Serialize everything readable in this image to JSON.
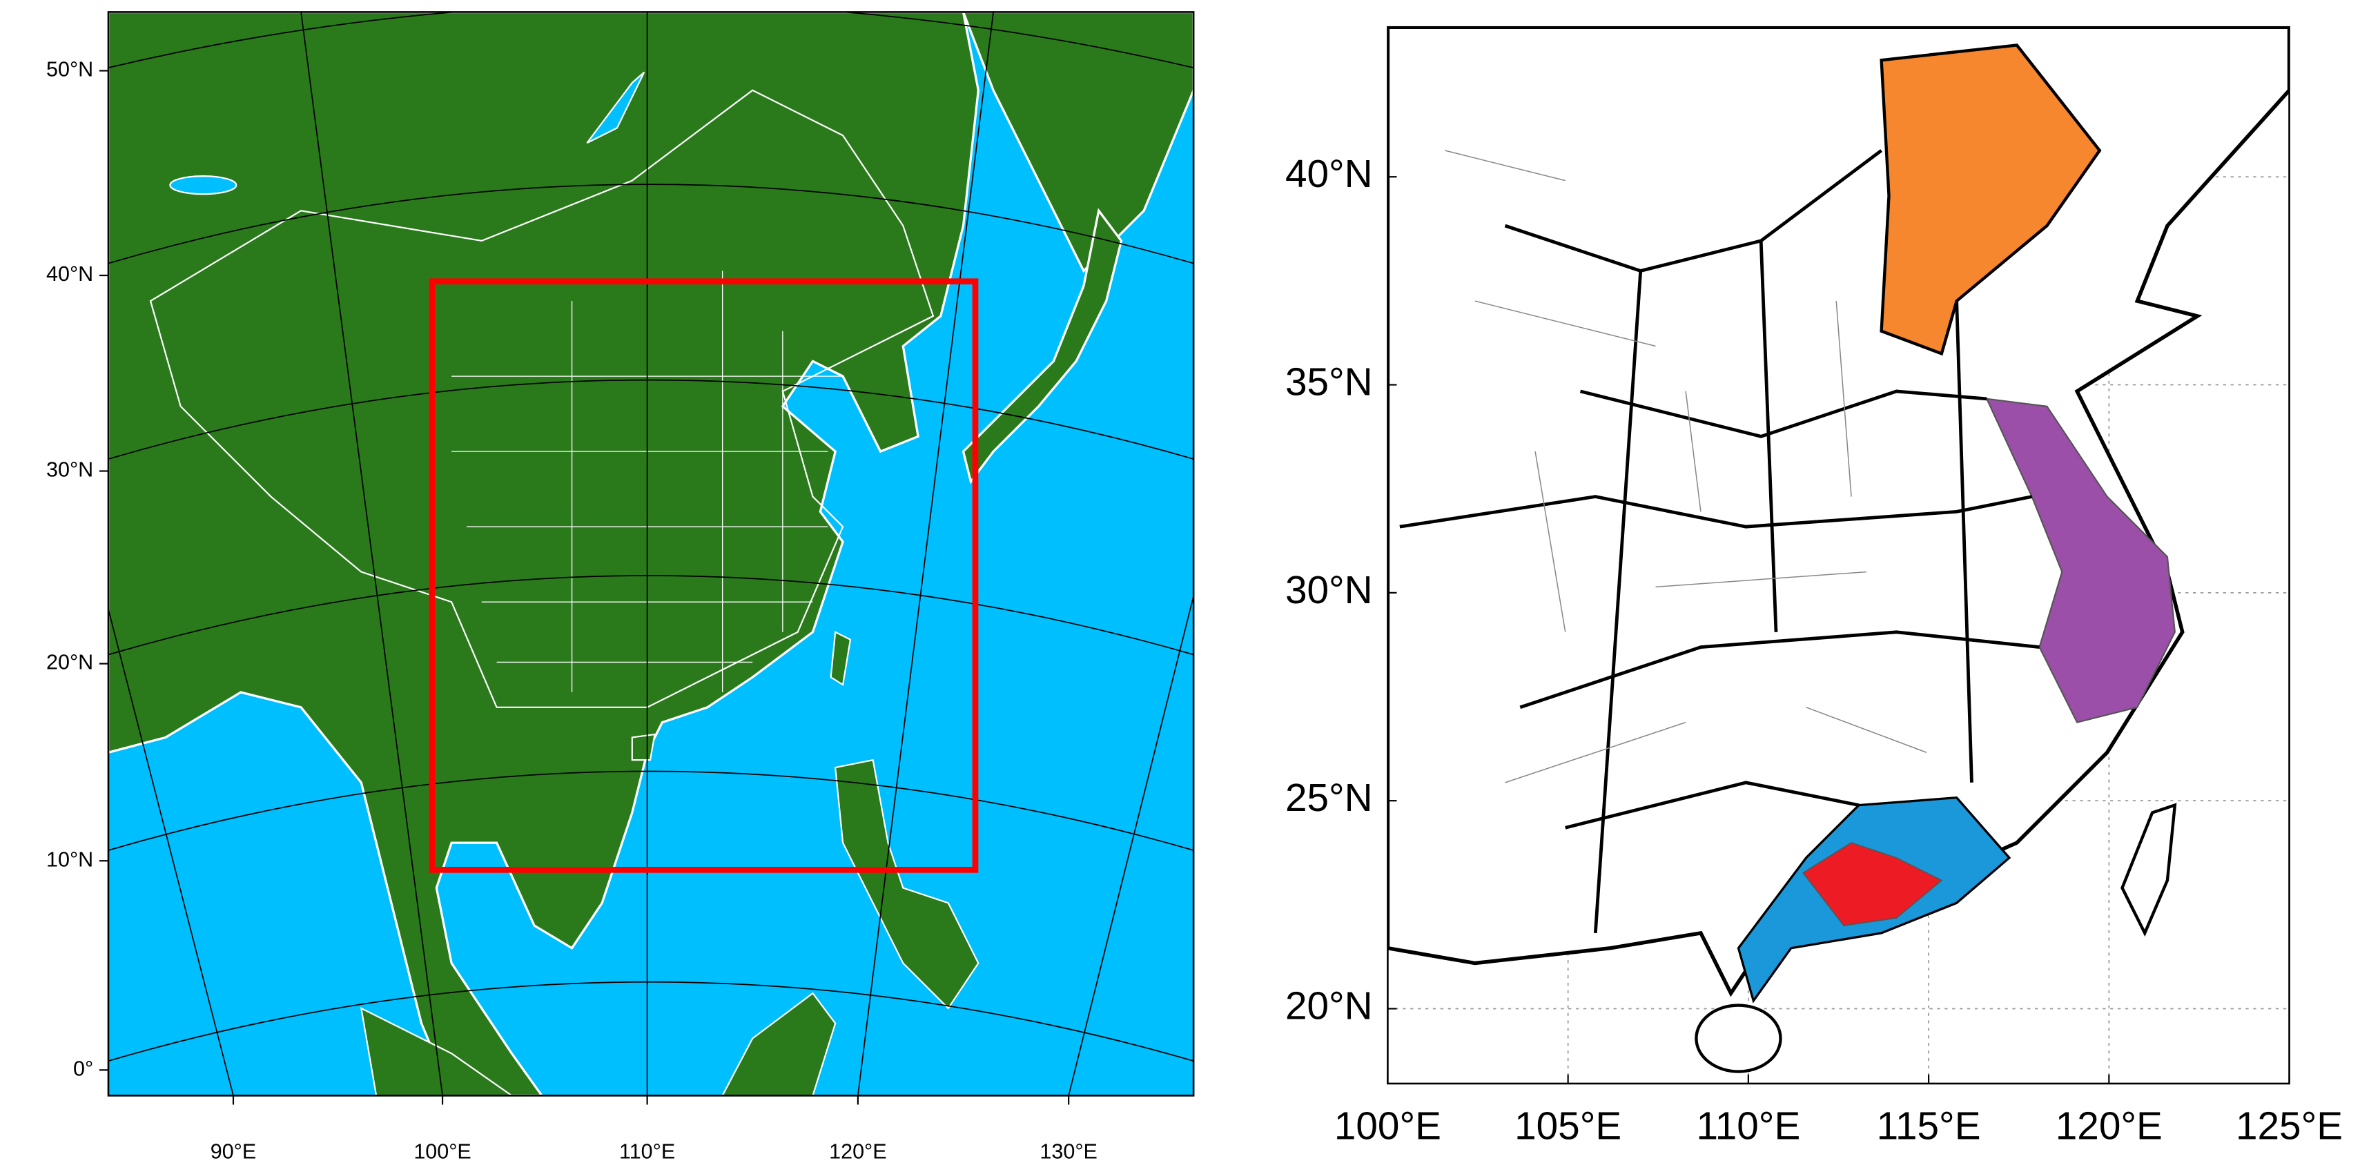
{
  "left_map": {
    "lat_labels": [
      "50°N",
      "40°N",
      "30°N",
      "20°N",
      "10°N",
      "0°"
    ],
    "lon_labels": [
      "90°E",
      "100°E",
      "110°E",
      "120°E",
      "130°E"
    ]
  },
  "right_map": {
    "xlim": [
      100,
      125
    ],
    "ylim": [
      18.2,
      43.6
    ],
    "xticks": [
      {
        "value": 100,
        "label": "100°E"
      },
      {
        "value": 105,
        "label": "105°E"
      },
      {
        "value": 110,
        "label": "110°E"
      },
      {
        "value": 115,
        "label": "115°E"
      },
      {
        "value": 120,
        "label": "120°E"
      },
      {
        "value": 125,
        "label": "125°E"
      }
    ],
    "yticks": [
      {
        "value": 20,
        "label": "20°N"
      },
      {
        "value": 25,
        "label": "25°N"
      },
      {
        "value": 30,
        "label": "30°N"
      },
      {
        "value": 35,
        "label": "35°N"
      },
      {
        "value": 40,
        "label": "40°N"
      }
    ],
    "grid": true
  }
}
